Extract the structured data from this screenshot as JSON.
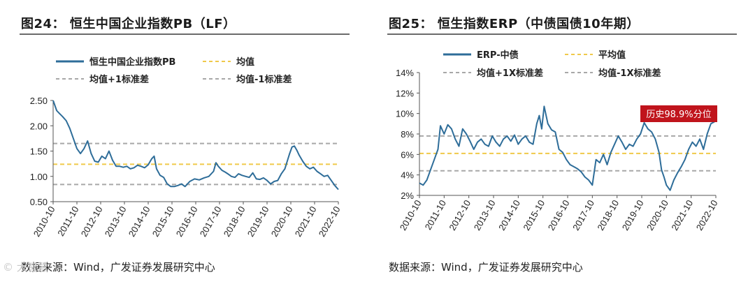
{
  "watermark": "© 大智慧",
  "charts": [
    {
      "title": "图24： 恒生中国企业指数PB（LF）",
      "source": "数据来源：Wind，广发证券发展研究中心",
      "colors": {
        "series": "#2e6d99",
        "mean": "#f0c94a",
        "band": "#a8a8a8",
        "axis": "#555555",
        "rule": "#6b6b6b"
      },
      "chart_data": {
        "type": "line",
        "title": "恒生中国企业指数PB（LF）",
        "xlabel": "",
        "ylabel": "",
        "x_range": [
          2010.75,
          2022.75
        ],
        "ylim": [
          0.5,
          2.5
        ],
        "yticks": [
          "0.50",
          "1.00",
          "1.50",
          "2.00",
          "2.50"
        ],
        "ytick_values": [
          0.5,
          1.0,
          1.5,
          2.0,
          2.5
        ],
        "xticks": [
          "2010-10",
          "2011-10",
          "2012-10",
          "2013-10",
          "2014-10",
          "2015-10",
          "2016-10",
          "2017-10",
          "2018-10",
          "2019-10",
          "2020-10",
          "2021-10",
          "2022-10"
        ],
        "legend": [
          "恒生中国企业指数PB",
          "均值",
          "均值+1标准差",
          "均值-1标准差"
        ],
        "hlines": {
          "mean": 1.24,
          "upper": 1.65,
          "lower": 0.84
        },
        "series": [
          {
            "name": "恒生中国企业指数PB",
            "x": [
              2010.75,
              2010.9,
              2011.0,
              2011.15,
              2011.3,
              2011.45,
              2011.6,
              2011.75,
              2011.9,
              2012.05,
              2012.2,
              2012.35,
              2012.5,
              2012.65,
              2012.8,
              2012.95,
              2013.1,
              2013.25,
              2013.4,
              2013.55,
              2013.7,
              2013.85,
              2014.0,
              2014.15,
              2014.3,
              2014.45,
              2014.6,
              2014.75,
              2014.9,
              2015.0,
              2015.1,
              2015.25,
              2015.4,
              2015.55,
              2015.7,
              2015.85,
              2016.0,
              2016.15,
              2016.3,
              2016.5,
              2016.7,
              2016.9,
              2017.1,
              2017.3,
              2017.5,
              2017.6,
              2017.7,
              2017.85,
              2018.0,
              2018.1,
              2018.25,
              2018.4,
              2018.55,
              2018.7,
              2018.85,
              2019.0,
              2019.15,
              2019.3,
              2019.45,
              2019.6,
              2019.75,
              2019.9,
              2020.05,
              2020.2,
              2020.35,
              2020.5,
              2020.6,
              2020.7,
              2020.8,
              2020.9,
              2021.0,
              2021.1,
              2021.25,
              2021.4,
              2021.55,
              2021.7,
              2021.85,
              2022.0,
              2022.15,
              2022.3,
              2022.45,
              2022.6,
              2022.75
            ],
            "values": [
              2.5,
              2.3,
              2.25,
              2.18,
              2.1,
              1.95,
              1.75,
              1.55,
              1.45,
              1.55,
              1.7,
              1.45,
              1.3,
              1.28,
              1.4,
              1.35,
              1.5,
              1.32,
              1.2,
              1.2,
              1.18,
              1.2,
              1.15,
              1.17,
              1.22,
              1.2,
              1.17,
              1.23,
              1.35,
              1.4,
              1.15,
              1.02,
              0.98,
              0.85,
              0.8,
              0.8,
              0.82,
              0.85,
              0.8,
              0.9,
              0.95,
              0.93,
              0.97,
              1.0,
              1.1,
              1.27,
              1.2,
              1.12,
              1.08,
              1.05,
              1.0,
              0.98,
              1.05,
              1.02,
              1.0,
              0.98,
              1.07,
              0.95,
              0.94,
              0.97,
              0.92,
              0.85,
              0.9,
              0.92,
              1.05,
              1.15,
              1.3,
              1.45,
              1.58,
              1.6,
              1.52,
              1.42,
              1.3,
              1.2,
              1.15,
              1.18,
              1.1,
              1.05,
              1.0,
              1.02,
              0.92,
              0.82,
              0.74
            ]
          }
        ]
      }
    },
    {
      "title": "图25： 恒生指数ERP（中债国债10年期）",
      "source": "数据来源：Wind，广发证券发展研究中心",
      "annotation": "历史98.9%分位",
      "colors": {
        "series": "#2e6d99",
        "mean": "#f0c94a",
        "band": "#a8a8a8",
        "axis": "#555555",
        "annotation_bg": "#c0141c",
        "annotation_fg": "#ffffff"
      },
      "chart_data": {
        "type": "line",
        "title": "恒生指数ERP（中债国债10年期）",
        "xlabel": "",
        "ylabel": "",
        "x_range": [
          2010.75,
          2022.75
        ],
        "ylim": [
          2,
          14
        ],
        "yticks": [
          "2%",
          "4%",
          "6%",
          "8%",
          "10%",
          "12%",
          "14%"
        ],
        "ytick_values": [
          2,
          4,
          6,
          8,
          10,
          12,
          14
        ],
        "xticks": [
          "2010-10",
          "2011-10",
          "2012-10",
          "2013-10",
          "2014-10",
          "2015-10",
          "2016-10",
          "2017-10",
          "2018-10",
          "2019-10",
          "2020-10",
          "2021-10",
          "2022-10"
        ],
        "legend": [
          "ERP-中债",
          "平均值",
          "均值+1X标准差",
          "均值-1X标准差"
        ],
        "hlines": {
          "mean": 6.1,
          "upper": 7.8,
          "lower": 4.4
        },
        "series": [
          {
            "name": "ERP-中债",
            "x": [
              2010.75,
              2010.9,
              2011.05,
              2011.2,
              2011.35,
              2011.5,
              2011.6,
              2011.75,
              2011.9,
              2012.05,
              2012.2,
              2012.35,
              2012.5,
              2012.65,
              2012.8,
              2012.95,
              2013.1,
              2013.25,
              2013.4,
              2013.55,
              2013.7,
              2013.85,
              2014.0,
              2014.15,
              2014.3,
              2014.45,
              2014.6,
              2014.75,
              2014.9,
              2015.05,
              2015.2,
              2015.35,
              2015.5,
              2015.6,
              2015.7,
              2015.8,
              2015.95,
              2016.1,
              2016.25,
              2016.4,
              2016.55,
              2016.7,
              2016.85,
              2017.0,
              2017.15,
              2017.3,
              2017.45,
              2017.6,
              2017.75,
              2017.9,
              2018.05,
              2018.2,
              2018.35,
              2018.5,
              2018.65,
              2018.8,
              2018.95,
              2019.1,
              2019.25,
              2019.4,
              2019.55,
              2019.7,
              2019.85,
              2020.0,
              2020.15,
              2020.3,
              2020.45,
              2020.55,
              2020.65,
              2020.75,
              2020.9,
              2021.05,
              2021.2,
              2021.35,
              2021.5,
              2021.65,
              2021.8,
              2021.95,
              2022.1,
              2022.25,
              2022.4,
              2022.55,
              2022.7
            ],
            "values": [
              3.2,
              3.0,
              3.5,
              4.5,
              5.5,
              6.5,
              8.8,
              8.0,
              8.9,
              8.5,
              7.5,
              6.8,
              8.5,
              8.0,
              7.3,
              6.5,
              7.2,
              7.5,
              7.0,
              6.8,
              7.8,
              7.2,
              6.8,
              7.5,
              7.8,
              7.3,
              7.9,
              7.0,
              7.5,
              7.8,
              7.2,
              7.0,
              9.0,
              9.8,
              8.5,
              10.7,
              9.0,
              8.4,
              8.2,
              6.5,
              6.2,
              5.5,
              5.0,
              4.8,
              4.6,
              4.3,
              3.8,
              3.5,
              3.0,
              5.5,
              5.2,
              6.0,
              5.0,
              6.2,
              7.0,
              7.8,
              7.2,
              6.5,
              7.0,
              6.8,
              7.5,
              8.0,
              9.1,
              8.5,
              8.2,
              7.5,
              6.2,
              4.5,
              3.8,
              3.0,
              2.5,
              3.5,
              4.2,
              4.8,
              5.5,
              6.5,
              7.2,
              6.8,
              7.5,
              6.5,
              8.0,
              9.0,
              9.2
            ]
          }
        ]
      }
    }
  ]
}
